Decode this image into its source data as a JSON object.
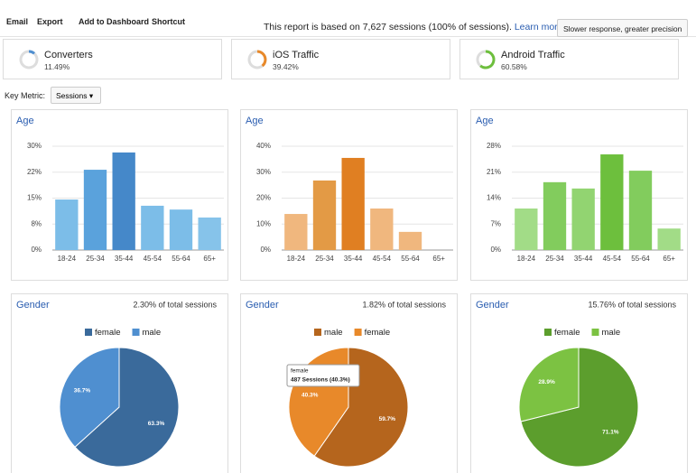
{
  "toolbar": {
    "items": [
      "Email",
      "Export",
      "Add to Dashboard",
      "Shortcut"
    ],
    "notice": "This report is based on 7,627 sessions (100% of sessions).",
    "link": "Learn more",
    "precision": "Slower response, greater precision"
  },
  "segments": [
    {
      "name": "Converters",
      "share": "11.49%"
    },
    {
      "name": "iOS Traffic",
      "share": "39.42%"
    },
    {
      "name": "Android Traffic",
      "share": "60.58%"
    }
  ],
  "key_metric": {
    "label": "Key Metric:",
    "value": "Sessions"
  },
  "chart_data": [
    {
      "type": "bar",
      "title": "Age",
      "categories": [
        "18-24",
        "25-34",
        "35-44",
        "45-54",
        "55-64",
        "65+"
      ],
      "values": [
        14.6,
        23.2,
        28.2,
        12.8,
        11.7,
        9.4
      ],
      "colors": [
        "#7cbde8",
        "#5aa2dc",
        "#4588c9",
        "#7cbde8",
        "#7cbde8",
        "#86c3ea"
      ],
      "ylim": [
        0,
        30
      ],
      "yticks": [
        {
          "value": 0,
          "label": "0%"
        },
        {
          "value": 7.5,
          "label": "8%"
        },
        {
          "value": 15,
          "label": "15%"
        },
        {
          "value": 22.5,
          "label": "22%"
        },
        {
          "value": 30,
          "label": "30%"
        }
      ],
      "grid": true
    },
    {
      "type": "bar",
      "title": "Age",
      "categories": [
        "18-24",
        "25-34",
        "35-44",
        "45-54",
        "55-64",
        "65+"
      ],
      "values": [
        13.9,
        26.8,
        35.5,
        16,
        7,
        0
      ],
      "colors": [
        "#f0b77e",
        "#e39a45",
        "#e07f22",
        "#f0b77e",
        "#f0b77e",
        "#f0b77e"
      ],
      "ylim": [
        0,
        40
      ],
      "yticks": [
        {
          "value": 0,
          "label": "0%"
        },
        {
          "value": 10,
          "label": "10%"
        },
        {
          "value": 20,
          "label": "20%"
        },
        {
          "value": 30,
          "label": "30%"
        },
        {
          "value": 40,
          "label": "40%"
        }
      ],
      "grid": true
    },
    {
      "type": "bar",
      "title": "Age",
      "categories": [
        "18-24",
        "25-34",
        "35-44",
        "45-54",
        "55-64",
        "65+"
      ],
      "values": [
        11.2,
        18.3,
        16.6,
        25.8,
        21.4,
        5.8
      ],
      "colors": [
        "#a2dc87",
        "#82cc5d",
        "#92d471",
        "#6dbf3d",
        "#82cc5d",
        "#a2dc87"
      ],
      "ylim": [
        0,
        28
      ],
      "yticks": [
        {
          "value": 0,
          "label": "0%"
        },
        {
          "value": 7,
          "label": "7%"
        },
        {
          "value": 14,
          "label": "14%"
        },
        {
          "value": 21,
          "label": "21%"
        },
        {
          "value": 28,
          "label": "28%"
        }
      ],
      "grid": true
    },
    {
      "type": "pie",
      "title": "Gender",
      "subtitle": "2.30% of total sessions",
      "categories": [
        "female",
        "male"
      ],
      "values": [
        63.3,
        36.7
      ],
      "value_labels": [
        "63.3%",
        "36.7%"
      ],
      "colors": [
        "#3a6a9b",
        "#4f8fd0"
      ]
    },
    {
      "type": "pie",
      "title": "Gender",
      "subtitle": "1.82% of total sessions",
      "categories": [
        "male",
        "female"
      ],
      "values": [
        59.7,
        40.3
      ],
      "value_labels": [
        "59.7%",
        "40.3%"
      ],
      "colors": [
        "#b5651d",
        "#e8892a"
      ],
      "tooltip": {
        "title": "female",
        "text": "487 Sessions (40.3%)"
      }
    },
    {
      "type": "pie",
      "title": "Gender",
      "subtitle": "15.76% of total sessions",
      "categories": [
        "female",
        "male"
      ],
      "values": [
        71.1,
        28.9
      ],
      "value_labels": [
        "71.1%",
        "28.9%"
      ],
      "colors": [
        "#5c9e2d",
        "#7cc242"
      ]
    }
  ]
}
